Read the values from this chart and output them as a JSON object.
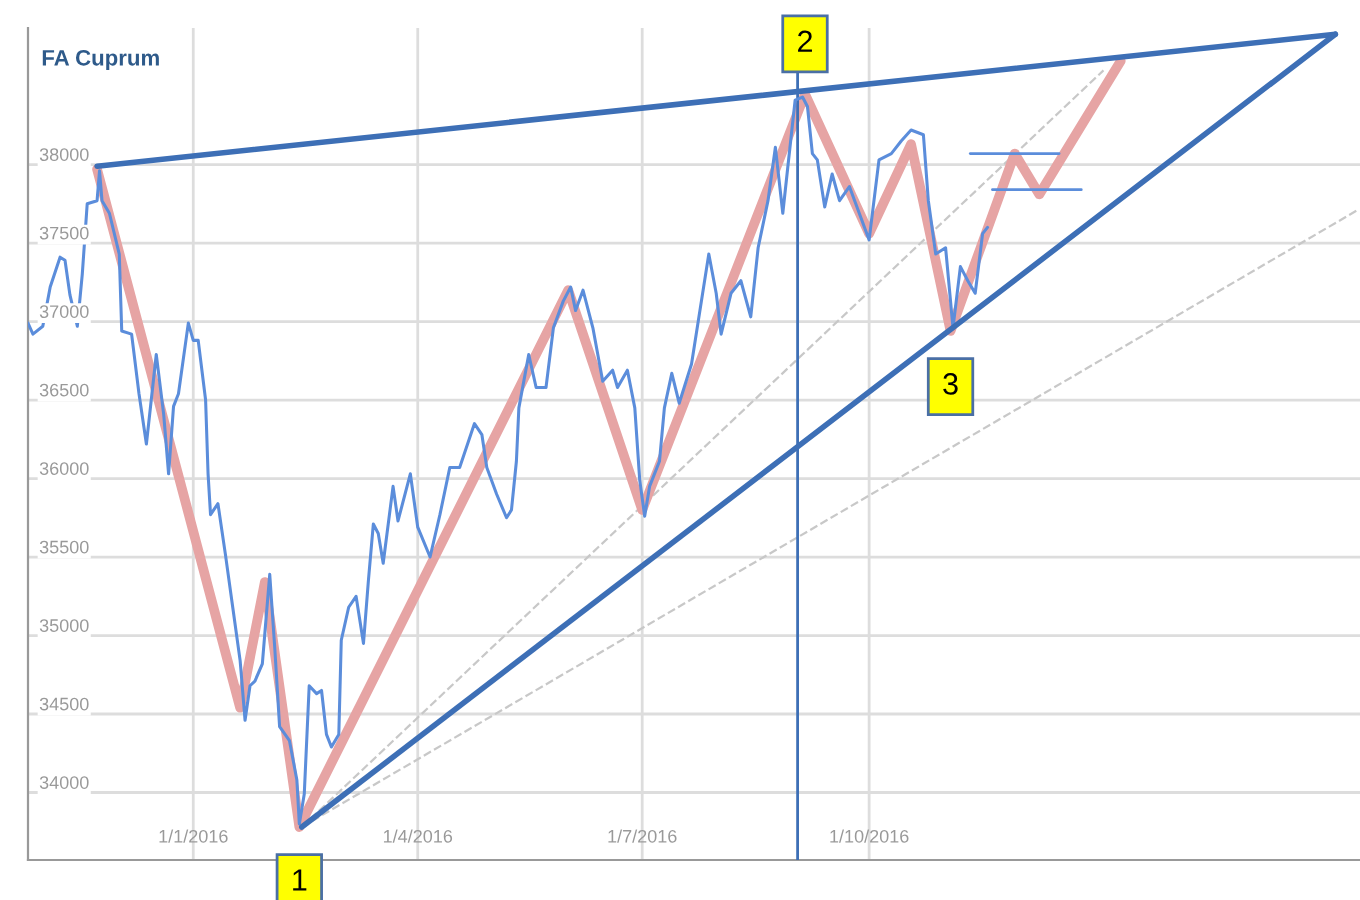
{
  "chart_data": {
    "type": "line",
    "title": "FA Cuprum",
    "xlim": [
      "2015-10-26",
      "2017-04-18"
    ],
    "ylim": [
      33570,
      38870
    ],
    "xticks": [
      {
        "value": "2016-01-01",
        "label": "1/1/2016"
      },
      {
        "value": "2016-04-01",
        "label": "1/4/2016"
      },
      {
        "value": "2016-07-01",
        "label": "1/7/2016"
      },
      {
        "value": "2016-10-01",
        "label": "1/10/2016"
      }
    ],
    "yticks": [
      34000,
      34500,
      35000,
      35500,
      36000,
      36500,
      37000,
      37500,
      38000
    ],
    "grid": true,
    "legend": false,
    "marker": "none",
    "series": [
      {
        "color": "#5b8ddb",
        "line_style": "solid",
        "x": [
          "2015-10-26",
          "2015-10-28",
          "2015-11-01",
          "2015-11-04",
          "2015-11-08",
          "2015-11-10",
          "2015-11-12",
          "2015-11-15",
          "2015-11-17",
          "2015-11-19",
          "2015-11-23",
          "2015-11-24",
          "2015-11-25",
          "2015-11-28",
          "2015-12-02",
          "2015-12-03",
          "2015-12-07",
          "2015-12-10",
          "2015-12-13",
          "2015-12-17",
          "2015-12-20",
          "2015-12-22",
          "2015-12-24",
          "2015-12-26",
          "2015-12-30",
          "2016-01-01",
          "2016-01-03",
          "2016-01-06",
          "2016-01-07",
          "2016-01-08",
          "2016-01-11",
          "2016-01-14",
          "2016-01-17",
          "2016-01-20",
          "2016-01-22",
          "2016-01-24",
          "2016-01-26",
          "2016-01-29",
          "2016-01-30",
          "2016-02-01",
          "2016-02-03",
          "2016-02-05",
          "2016-02-09",
          "2016-02-12",
          "2016-02-13",
          "2016-02-15",
          "2016-02-17",
          "2016-02-20",
          "2016-02-22",
          "2016-02-24",
          "2016-02-26",
          "2016-02-29",
          "2016-03-01",
          "2016-03-04",
          "2016-03-07",
          "2016-03-10",
          "2016-03-12",
          "2016-03-14",
          "2016-03-16",
          "2016-03-18",
          "2016-03-22",
          "2016-03-24",
          "2016-03-29",
          "2016-04-01",
          "2016-04-06",
          "2016-04-10",
          "2016-04-14",
          "2016-04-18",
          "2016-04-24",
          "2016-04-27",
          "2016-04-29",
          "2016-05-03",
          "2016-05-07",
          "2016-05-09",
          "2016-05-11",
          "2016-05-12",
          "2016-05-16",
          "2016-05-19",
          "2016-05-23",
          "2016-05-26",
          "2016-05-30",
          "2016-06-02",
          "2016-06-04",
          "2016-06-07",
          "2016-06-11",
          "2016-06-15",
          "2016-06-19",
          "2016-06-21",
          "2016-06-25",
          "2016-06-28",
          "2016-06-30",
          "2016-07-02",
          "2016-07-04",
          "2016-07-08",
          "2016-07-10",
          "2016-07-13",
          "2016-07-16",
          "2016-07-21",
          "2016-07-28",
          "2016-07-31",
          "2016-08-02",
          "2016-08-06",
          "2016-08-10",
          "2016-08-14",
          "2016-08-17",
          "2016-08-21",
          "2016-08-24",
          "2016-08-27",
          "2016-08-29",
          "2016-09-01",
          "2016-09-04",
          "2016-09-06",
          "2016-09-08",
          "2016-09-10",
          "2016-09-13",
          "2016-09-16",
          "2016-09-19",
          "2016-09-23",
          "2016-09-27",
          "2016-10-01",
          "2016-10-05",
          "2016-10-10",
          "2016-10-14",
          "2016-10-18",
          "2016-10-23",
          "2016-10-25",
          "2016-10-28",
          "2016-11-01",
          "2016-11-04",
          "2016-11-07",
          "2016-11-10",
          "2016-11-13",
          "2016-11-16",
          "2016-11-18"
        ],
        "values": [
          36990,
          36920,
          36970,
          37220,
          37410,
          37390,
          37170,
          36970,
          37300,
          37750,
          37770,
          37960,
          37770,
          37690,
          37430,
          36940,
          36920,
          36540,
          36220,
          36790,
          36410,
          36030,
          36460,
          36540,
          36990,
          36880,
          36880,
          36500,
          36030,
          35770,
          35840,
          35520,
          35180,
          34840,
          34460,
          34680,
          34710,
          34820,
          35010,
          35390,
          34930,
          34420,
          34330,
          34080,
          33800,
          33990,
          34680,
          34630,
          34650,
          34370,
          34290,
          34370,
          34970,
          35180,
          35250,
          34950,
          35350,
          35710,
          35650,
          35460,
          35950,
          35730,
          36030,
          35690,
          35500,
          35770,
          36070,
          36070,
          36350,
          36280,
          36070,
          35900,
          35750,
          35800,
          36110,
          36450,
          36790,
          36580,
          36580,
          36960,
          37130,
          37220,
          37070,
          37200,
          36960,
          36620,
          36690,
          36580,
          36690,
          36450,
          35990,
          35760,
          35950,
          36110,
          36450,
          36670,
          36480,
          36730,
          37430,
          37180,
          36920,
          37180,
          37260,
          37030,
          37470,
          37770,
          38110,
          37690,
          37980,
          38410,
          38430,
          38370,
          38070,
          38030,
          37730,
          37940,
          37770,
          37860,
          37690,
          37520,
          38030,
          38070,
          38150,
          38220,
          38190,
          37770,
          37430,
          37470,
          36960,
          37350,
          37260,
          37180,
          37560,
          37600
        ]
      },
      {
        "color": "#e6a4a4",
        "line_style": "solid",
        "x": [
          "2015-11-23",
          "2016-01-20",
          "2016-01-30",
          "2016-02-13",
          "2016-06-01",
          "2016-07-01",
          "2016-09-05",
          "2016-10-01",
          "2016-10-18",
          "2016-11-03",
          "2016-11-29",
          "2016-12-09",
          "2017-01-11"
        ],
        "values": [
          37970,
          34540,
          35340,
          33780,
          37200,
          35800,
          38450,
          37560,
          38130,
          36940,
          38070,
          37810,
          38660
        ]
      },
      {
        "color": "#5b8ddb",
        "line_style": "solid",
        "x": [
          "2016-11-11",
          "2016-12-17"
        ],
        "values": [
          38070,
          38070
        ]
      },
      {
        "color": "#5b8ddb",
        "line_style": "solid",
        "x": [
          "2016-11-20",
          "2016-12-26"
        ],
        "values": [
          37840,
          37840
        ]
      },
      {
        "color": "#3d6fb6",
        "line_style": "solid",
        "x": [
          "2015-11-23",
          "2017-04-08"
        ],
        "values": [
          37990,
          38830
        ]
      },
      {
        "color": "#3d6fb6",
        "line_style": "solid",
        "x": [
          "2016-02-14",
          "2017-04-08"
        ],
        "values": [
          33780,
          38830
        ]
      },
      {
        "color": "#c8c8c8",
        "line_style": "dashed",
        "x": [
          "2016-02-14",
          "2017-01-04"
        ],
        "values": [
          33780,
          38600
        ]
      },
      {
        "color": "#c8c8c8",
        "line_style": "dashed",
        "x": [
          "2016-02-14",
          "2017-04-17"
        ],
        "values": [
          33780,
          37710
        ]
      }
    ],
    "ref_lines": [
      {
        "axis": "x",
        "value": "2016-09-02",
        "color": "#3d6fb6"
      }
    ],
    "annotations": [
      {
        "text": "1",
        "x": "2016-02-13",
        "y": 33780
      },
      {
        "text": "2",
        "x": "2016-09-05",
        "y": 38450
      },
      {
        "text": "3",
        "x": "2016-11-03",
        "y": 36940
      }
    ]
  }
}
